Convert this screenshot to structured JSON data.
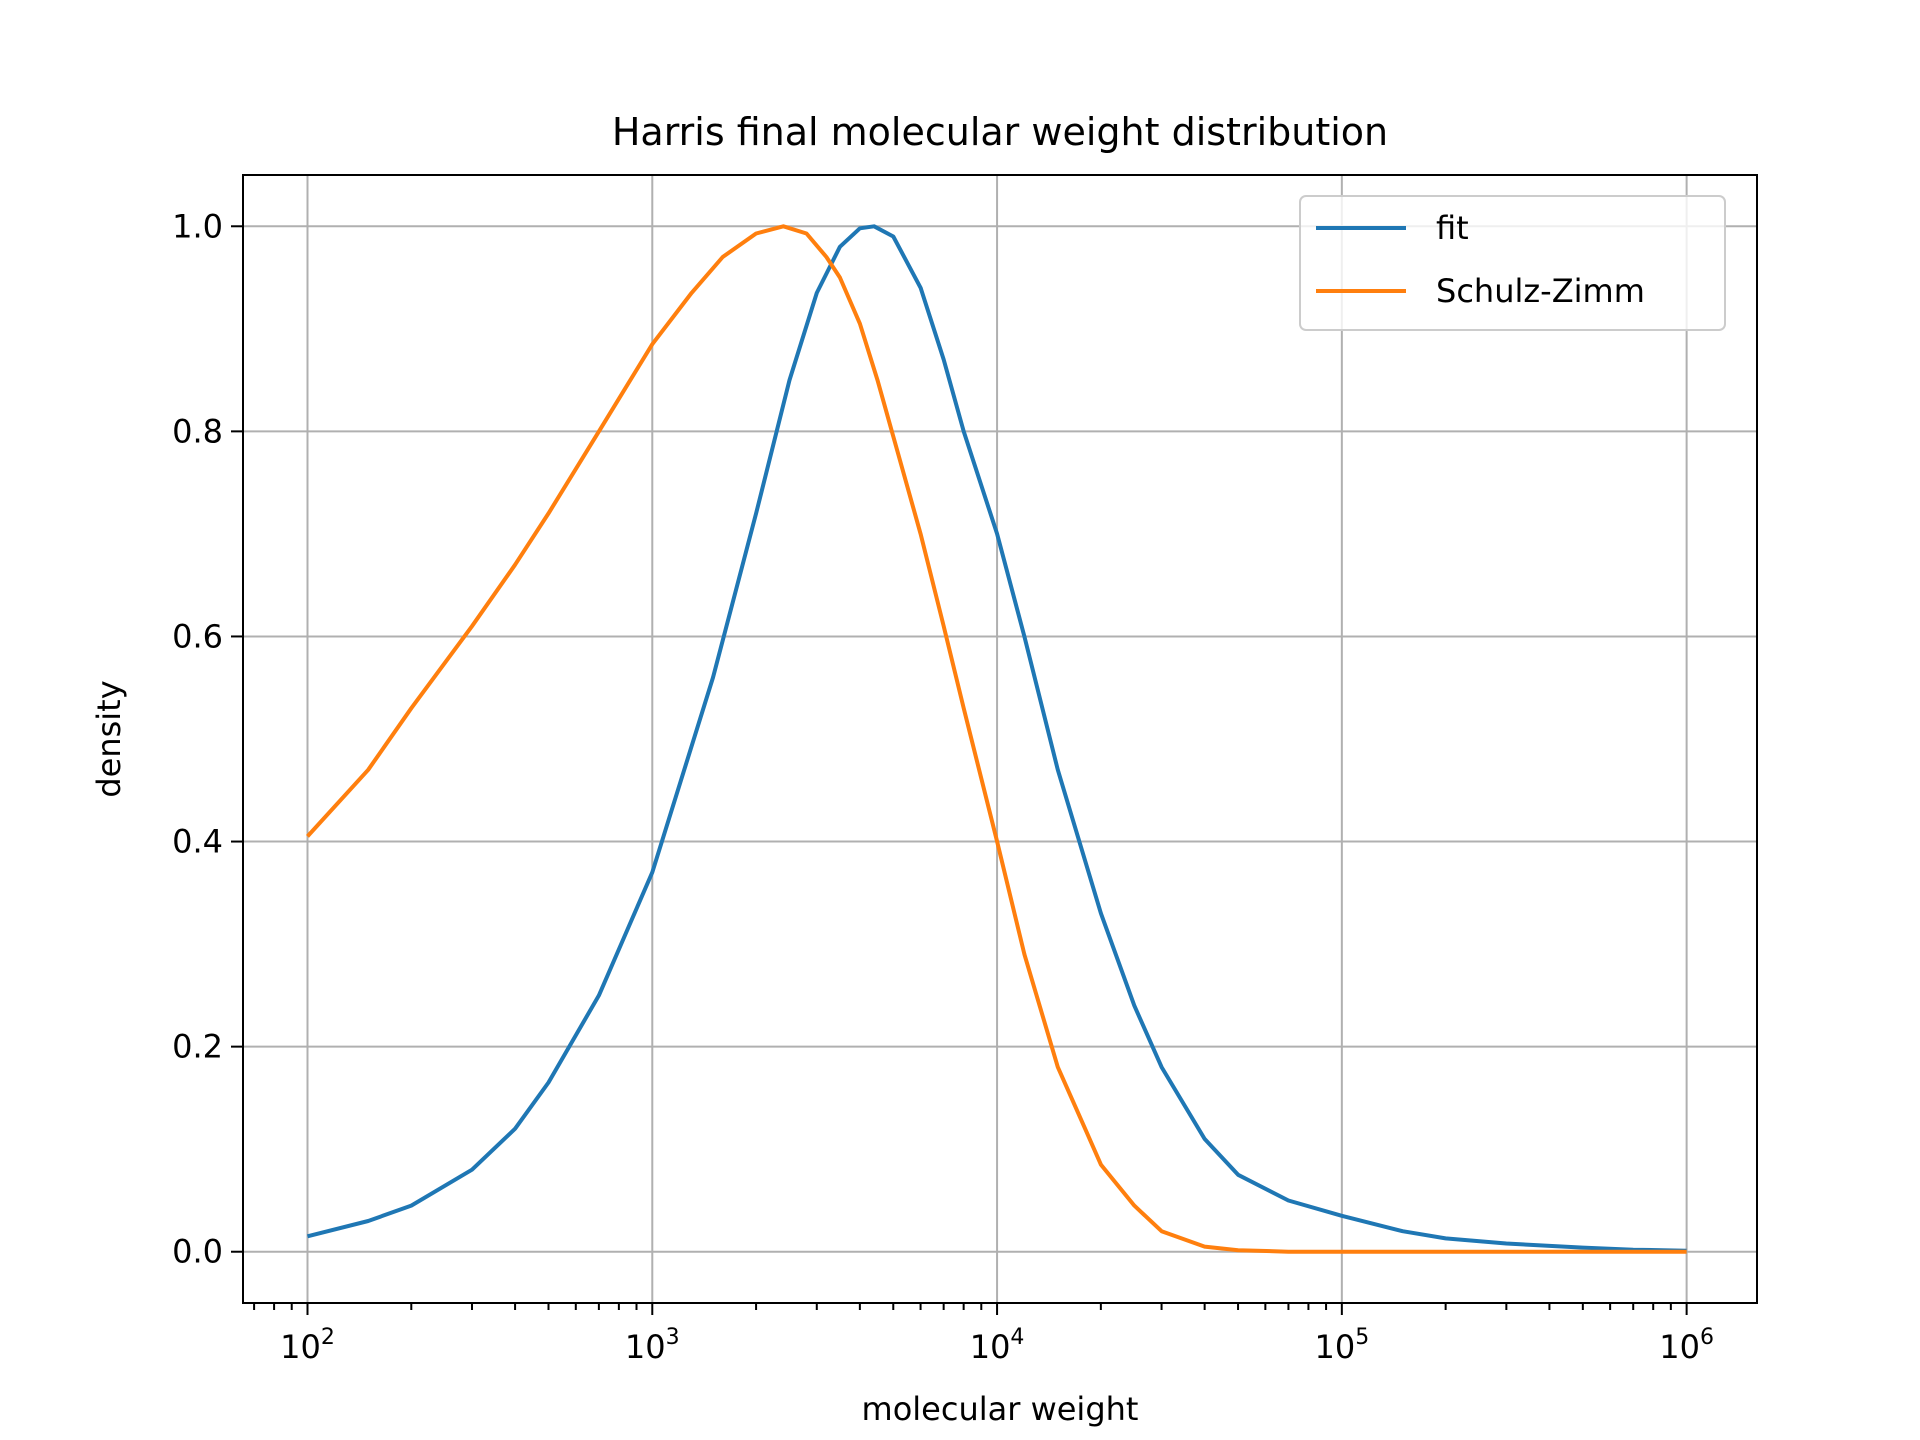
{
  "chart_data": {
    "type": "line",
    "title": "Harris final molecular weight distribution",
    "xlabel": "molecular weight",
    "ylabel": "density",
    "xscale": "log",
    "xlim": [
      65,
      1600000
    ],
    "ylim": [
      -0.05,
      1.05
    ],
    "grid": true,
    "legend_position": "top-right",
    "x_ticks": [
      {
        "base": "10",
        "exp": "2",
        "value": 100
      },
      {
        "base": "10",
        "exp": "3",
        "value": 1000
      },
      {
        "base": "10",
        "exp": "4",
        "value": 10000
      },
      {
        "base": "10",
        "exp": "5",
        "value": 100000
      },
      {
        "base": "10",
        "exp": "6",
        "value": 1000000
      }
    ],
    "y_ticks": [
      {
        "label": "0.0",
        "value": 0.0
      },
      {
        "label": "0.2",
        "value": 0.2
      },
      {
        "label": "0.4",
        "value": 0.4
      },
      {
        "label": "0.6",
        "value": 0.6
      },
      {
        "label": "0.8",
        "value": 0.8
      },
      {
        "label": "1.0",
        "value": 1.0
      }
    ],
    "series": [
      {
        "name": "fit",
        "color": "#1f77b4",
        "x": [
          100,
          150,
          200,
          300,
          400,
          500,
          700,
          1000,
          1500,
          2000,
          2500,
          3000,
          3500,
          4000,
          4400,
          5000,
          6000,
          7000,
          8000,
          10000,
          12000,
          15000,
          20000,
          25000,
          30000,
          40000,
          50000,
          70000,
          100000,
          150000,
          200000,
          300000,
          500000,
          700000,
          1000000
        ],
        "y": [
          0.015,
          0.03,
          0.045,
          0.08,
          0.12,
          0.165,
          0.25,
          0.37,
          0.56,
          0.72,
          0.85,
          0.935,
          0.98,
          0.998,
          1.0,
          0.99,
          0.94,
          0.87,
          0.8,
          0.7,
          0.6,
          0.47,
          0.33,
          0.24,
          0.18,
          0.11,
          0.075,
          0.05,
          0.035,
          0.02,
          0.013,
          0.008,
          0.004,
          0.002,
          0.001
        ]
      },
      {
        "name": "Schulz-Zimm",
        "color": "#ff7f0e",
        "x": [
          100,
          150,
          200,
          300,
          400,
          500,
          700,
          1000,
          1300,
          1600,
          2000,
          2400,
          2800,
          3200,
          3500,
          4000,
          4500,
          5000,
          6000,
          7000,
          8000,
          10000,
          12000,
          15000,
          18000,
          20000,
          25000,
          30000,
          40000,
          50000,
          70000,
          100000,
          200000,
          1000000
        ],
        "y": [
          0.405,
          0.47,
          0.53,
          0.61,
          0.67,
          0.72,
          0.8,
          0.885,
          0.935,
          0.97,
          0.993,
          1.0,
          0.993,
          0.97,
          0.95,
          0.905,
          0.85,
          0.795,
          0.7,
          0.61,
          0.53,
          0.4,
          0.29,
          0.18,
          0.12,
          0.085,
          0.045,
          0.02,
          0.005,
          0.0015,
          0.0,
          0.0,
          0.0,
          0.0
        ]
      }
    ]
  }
}
